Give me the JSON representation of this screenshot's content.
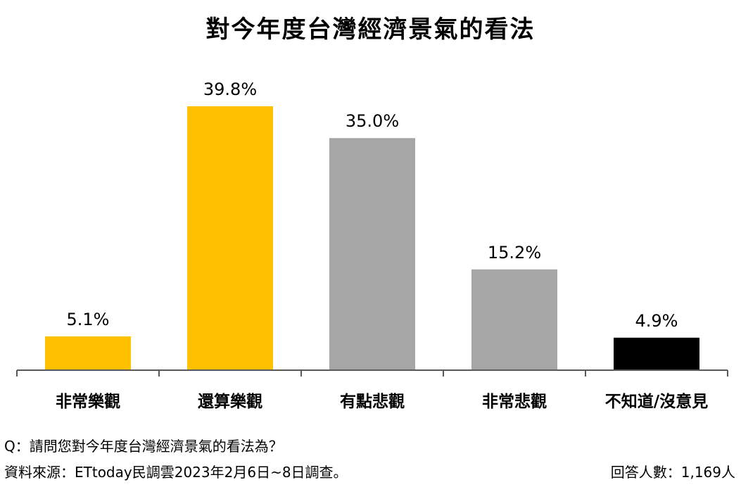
{
  "chart_data": {
    "type": "bar",
    "title": "對今年度台灣經濟景氣的看法",
    "categories": [
      "非常樂觀",
      "還算樂觀",
      "有點悲觀",
      "非常悲觀",
      "不知道/沒意見"
    ],
    "values": [
      5.1,
      39.8,
      35.0,
      15.2,
      4.9
    ],
    "value_labels": [
      "5.1%",
      "39.8%",
      "35.0%",
      "15.2%",
      "4.9%"
    ],
    "colors": [
      "#FFC000",
      "#FFC000",
      "#A6A6A6",
      "#A6A6A6",
      "#000000"
    ],
    "ylim": [
      0,
      40
    ],
    "grid": false
  },
  "footer": {
    "question": "Q：請問您對今年度台灣經濟景氣的看法為？",
    "source": "資料來源：ETtoday民調雲2023年2月6日~8日調查。",
    "respondents": "回答人數：1,169人"
  }
}
